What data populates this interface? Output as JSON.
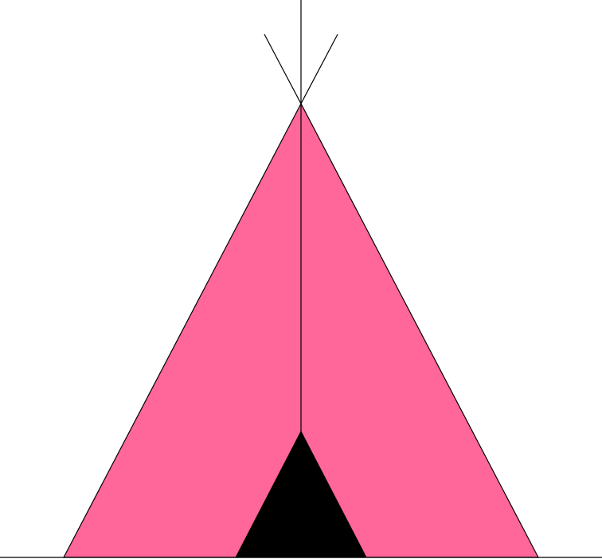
{
  "colors": {
    "background": "#ffffff",
    "tent_fabric": "#ff6699",
    "door": "#000000",
    "outline": "#000000"
  }
}
